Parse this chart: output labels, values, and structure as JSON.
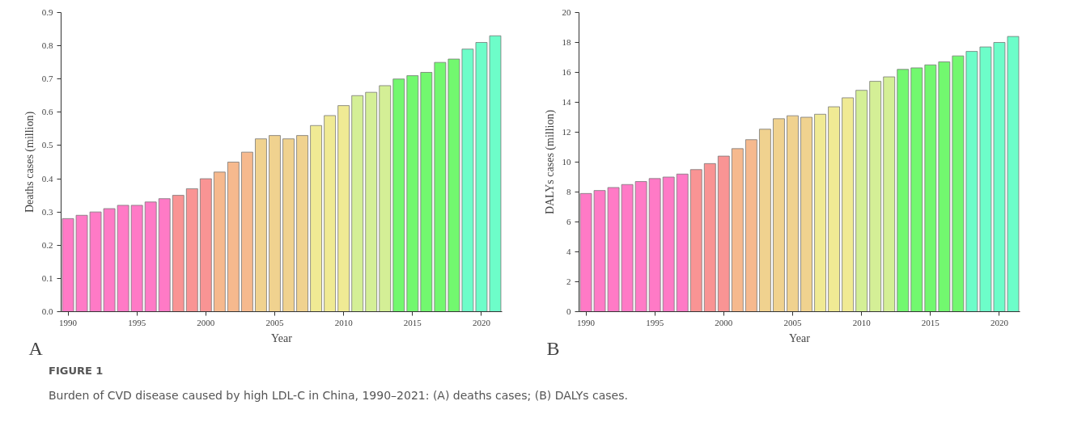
{
  "chart_data": [
    {
      "type": "bar",
      "xlabel": "Year",
      "ylabel": "Deaths cases (million)",
      "annotations": [
        "A",
        "FIGURE 1",
        "Burden of CVD disease caused by high LDL-C in China, 1990–2021: (A) deaths cases; (B) DALYs cases."
      ],
      "x": [
        1990,
        1991,
        1992,
        1993,
        1994,
        1995,
        1996,
        1997,
        1998,
        1999,
        2000,
        2001,
        2002,
        2003,
        2004,
        2005,
        2006,
        2007,
        2008,
        2009,
        2010,
        2011,
        2012,
        2013,
        2014,
        2015,
        2016,
        2017,
        2018,
        2019,
        2020,
        2021
      ],
      "values": [
        0.28,
        0.29,
        0.3,
        0.31,
        0.32,
        0.32,
        0.33,
        0.34,
        0.35,
        0.37,
        0.4,
        0.42,
        0.45,
        0.48,
        0.52,
        0.53,
        0.52,
        0.53,
        0.56,
        0.59,
        0.62,
        0.65,
        0.66,
        0.68,
        0.7,
        0.71,
        0.72,
        0.75,
        0.76,
        0.79,
        0.81,
        0.83
      ],
      "colors": [
        "#ff7ac6",
        "#ff7ac6",
        "#ff7ac6",
        "#ff7ac6",
        "#ff7ac6",
        "#ff7ac6",
        "#ff7ac6",
        "#ff7ac6",
        "#f99494",
        "#f99494",
        "#f99494",
        "#f6b98e",
        "#f6b98e",
        "#f6b98e",
        "#f0d28f",
        "#f0d28f",
        "#f0d28f",
        "#f0d28f",
        "#f0ea94",
        "#f0ea94",
        "#f0ea94",
        "#d4ef96",
        "#d4ef96",
        "#d4ef96",
        "#72f86f",
        "#72f86f",
        "#72f86f",
        "#72f86f",
        "#72f86f",
        "#6dfdc9",
        "#6dfdc9",
        "#6dfdc9"
      ],
      "xlim": [
        1989.5,
        2021.5
      ],
      "xticks": [
        1990,
        1995,
        2000,
        2005,
        2010,
        2015,
        2020
      ],
      "ylim": [
        0,
        0.9
      ],
      "yticks": [
        {
          "value": 0,
          "label": "0.0"
        },
        0.1,
        0.2,
        0.3,
        0.4,
        0.5,
        0.6,
        0.7,
        0.8,
        0.9
      ],
      "grid": false
    },
    {
      "type": "bar",
      "xlabel": "Year",
      "ylabel": "DALYs cases (million)",
      "annotations": [
        "B"
      ],
      "x": [
        1990,
        1991,
        1992,
        1993,
        1994,
        1995,
        1996,
        1997,
        1998,
        1999,
        2000,
        2001,
        2002,
        2003,
        2004,
        2005,
        2006,
        2007,
        2008,
        2009,
        2010,
        2011,
        2012,
        2013,
        2014,
        2015,
        2016,
        2017,
        2018,
        2019,
        2020,
        2021
      ],
      "values": [
        7.9,
        8.1,
        8.3,
        8.5,
        8.7,
        8.9,
        9.0,
        9.2,
        9.5,
        9.9,
        10.4,
        10.9,
        11.5,
        12.2,
        12.9,
        13.1,
        13.0,
        13.2,
        13.7,
        14.3,
        14.8,
        15.4,
        15.7,
        16.2,
        16.3,
        16.5,
        16.7,
        17.1,
        17.4,
        17.7,
        18.0,
        18.4
      ],
      "colors": [
        "#ff7ac6",
        "#ff7ac6",
        "#ff7ac6",
        "#ff7ac6",
        "#ff7ac6",
        "#ff7ac6",
        "#ff7ac6",
        "#ff7ac6",
        "#f99494",
        "#f99494",
        "#f99494",
        "#f6b98e",
        "#f6b98e",
        "#f0d28f",
        "#f0d28f",
        "#f0d28f",
        "#f0d28f",
        "#f0ea94",
        "#f0ea94",
        "#f0ea94",
        "#d4ef96",
        "#d4ef96",
        "#d4ef96",
        "#72f86f",
        "#72f86f",
        "#72f86f",
        "#72f86f",
        "#72f86f",
        "#6dfdc9",
        "#6dfdc9",
        "#6dfdc9",
        "#6dfdc9"
      ],
      "xlim": [
        1989.5,
        2021.5
      ],
      "xticks": [
        1990,
        1995,
        2000,
        2005,
        2010,
        2015,
        2020
      ],
      "ylim": [
        0,
        20
      ],
      "yticks": [
        0,
        2,
        4,
        6,
        8,
        10,
        12,
        14,
        16,
        18,
        20
      ],
      "grid": false
    }
  ]
}
